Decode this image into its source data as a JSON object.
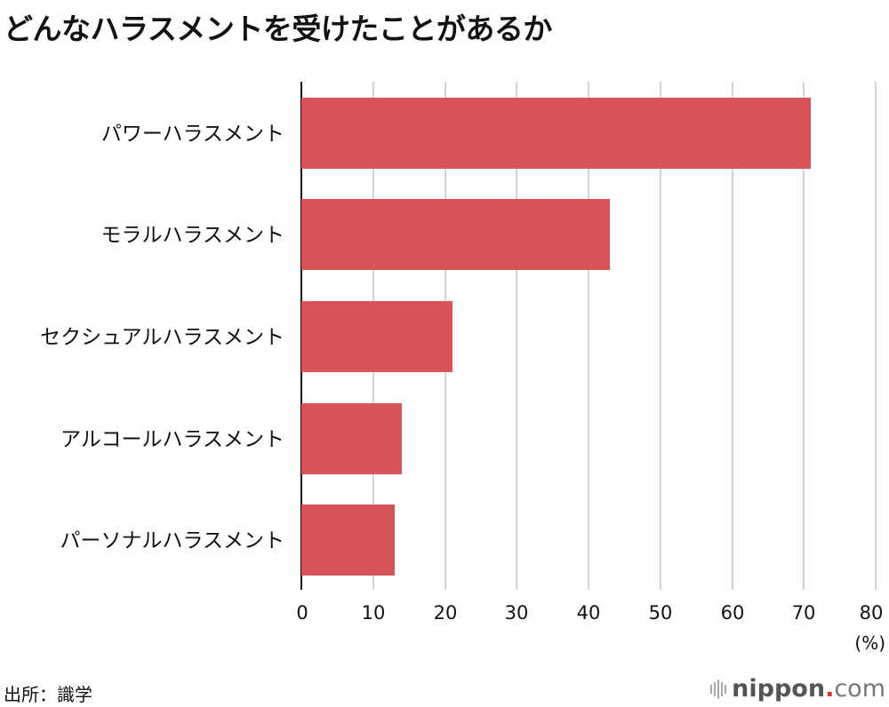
{
  "title": "どんなハラスメントを受けたことがあるか",
  "chart_data": {
    "type": "bar",
    "orientation": "horizontal",
    "title": "どんなハラスメントを受けたことがあるか",
    "categories": [
      "パワーハラスメント",
      "モラルハラスメント",
      "セクシュアルハラスメント",
      "アルコールハラスメント",
      "パーソナルハラスメント"
    ],
    "values": [
      71,
      43,
      21,
      14,
      13
    ],
    "xlabel": "(%)",
    "ylabel": "",
    "xlim": [
      0,
      80
    ],
    "xticks": [
      "0",
      "10",
      "20",
      "30",
      "40",
      "50",
      "60",
      "70",
      "80"
    ],
    "grid": true,
    "bar_color": "#d85457"
  },
  "labels": {
    "cat0": "パワーハラスメント",
    "cat1": "モラルハラスメント",
    "cat2": "セクシュアルハラスメント",
    "cat3": "アルコールハラスメント",
    "cat4": "パーソナルハラスメント",
    "unit": "(%)"
  },
  "ticks": [
    "0",
    "10",
    "20",
    "30",
    "40",
    "50",
    "60",
    "70",
    "80"
  ],
  "footer": {
    "source": "出所：識学",
    "logo_main": "nippon",
    "logo_dot": ".",
    "logo_com": "com"
  }
}
